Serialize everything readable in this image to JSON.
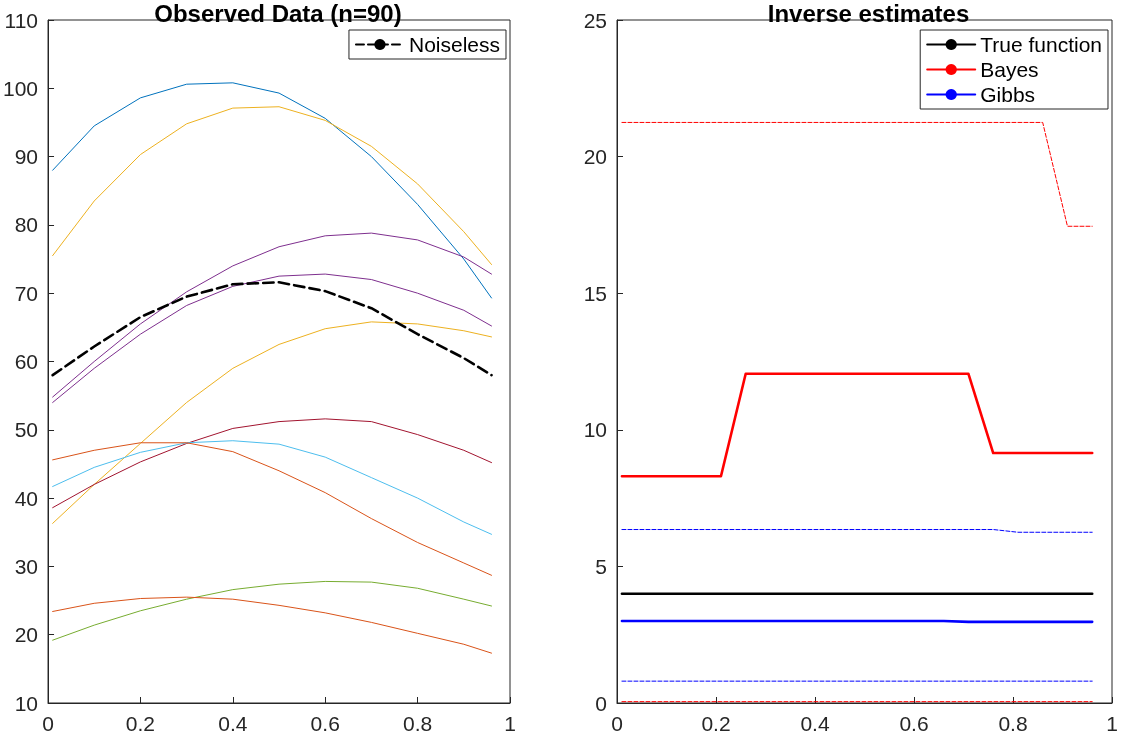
{
  "chart_data": [
    {
      "type": "line",
      "title": "Observed Data (n=90)",
      "x": [
        0.01,
        0.1,
        0.2,
        0.3,
        0.4,
        0.5,
        0.6,
        0.7,
        0.8,
        0.9,
        0.96
      ],
      "xlim": [
        0,
        1
      ],
      "xticks": [
        0,
        0.2,
        0.4,
        0.6,
        0.8,
        1
      ],
      "ylim": [
        10,
        110
      ],
      "yticks": [
        10,
        20,
        30,
        40,
        50,
        60,
        70,
        80,
        90,
        100,
        110
      ],
      "grid": false,
      "legend": "top right",
      "marker": "none",
      "series": [
        {
          "color": "#0072bd",
          "values": [
            88,
            94.5,
            98.6,
            100.6,
            100.8,
            99.3,
            95.6,
            90,
            83,
            75,
            69.3
          ]
        },
        {
          "color": "#edb120",
          "values": [
            75.5,
            83.5,
            90.3,
            94.8,
            97.1,
            97.3,
            95.3,
            91.5,
            86,
            79,
            74.2
          ]
        },
        {
          "color": "#7e2f8e",
          "values": [
            54.8,
            60,
            65.5,
            70.2,
            74,
            76.8,
            78.4,
            78.8,
            77.8,
            75.3,
            72.8
          ]
        },
        {
          "color": "#7e2f8e",
          "values": [
            54,
            59,
            64,
            68.2,
            71,
            72.5,
            72.8,
            72,
            70,
            67.5,
            65.2
          ]
        },
        {
          "name": "Noiseless",
          "color": "#000000",
          "line_style": "dashed",
          "values": [
            58,
            62.2,
            66.5,
            69.5,
            71.3,
            71.6,
            70.3,
            67.8,
            64,
            60.5,
            58
          ]
        },
        {
          "color": "#edb120",
          "values": [
            36.3,
            42,
            48,
            54,
            59,
            62.5,
            64.8,
            65.8,
            65.5,
            64.5,
            63.6
          ]
        },
        {
          "color": "#a2142f",
          "values": [
            38.6,
            42,
            45.3,
            48,
            50.2,
            51.2,
            51.6,
            51.2,
            49.3,
            47,
            45.2
          ]
        },
        {
          "color": "#4dbeee",
          "values": [
            41.7,
            44.5,
            46.7,
            48.1,
            48.4,
            47.9,
            46,
            43,
            40,
            36.5,
            34.7
          ]
        },
        {
          "color": "#d95319",
          "values": [
            45.6,
            47,
            48.1,
            48.1,
            46.8,
            44,
            40.8,
            37,
            33.5,
            30.5,
            28.7
          ]
        },
        {
          "color": "#77ac30",
          "values": [
            19.2,
            21.4,
            23.5,
            25.2,
            26.6,
            27.4,
            27.8,
            27.7,
            26.8,
            25.2,
            24.2
          ]
        },
        {
          "color": "#d95319",
          "values": [
            23.4,
            24.6,
            25.3,
            25.5,
            25.2,
            24.3,
            23.2,
            21.8,
            20.2,
            18.6,
            17.3
          ]
        }
      ]
    },
    {
      "type": "line",
      "title": "Inverse estimates",
      "xlim": [
        0,
        1
      ],
      "xticks": [
        0,
        0.2,
        0.4,
        0.6,
        0.8,
        1
      ],
      "ylim": [
        0,
        25
      ],
      "yticks": [
        0,
        5,
        10,
        15,
        20,
        25
      ],
      "grid": false,
      "legend": "top right",
      "marker": "none",
      "series": [
        {
          "name": "True function",
          "color": "#000000",
          "x": [
            0.01,
            0.96
          ],
          "values": [
            4,
            4
          ]
        },
        {
          "name": "Bayes",
          "color": "#ff0000",
          "x": [
            0.01,
            0.21,
            0.26,
            0.71,
            0.76,
            0.96
          ],
          "values": [
            8.3,
            8.3,
            12.05,
            12.05,
            9.15,
            9.15
          ]
        },
        {
          "name": "Gibbs",
          "color": "#0000ff",
          "x": [
            0.01,
            0.66,
            0.71,
            0.96
          ],
          "values": [
            3,
            3,
            2.97,
            2.97
          ]
        },
        {
          "color": "#ff0000",
          "line_style": "dashed",
          "x": [
            0.01,
            0.86,
            0.91,
            0.96
          ],
          "values": [
            21.25,
            21.25,
            17.45,
            17.45
          ]
        },
        {
          "color": "#ff0000",
          "line_style": "dashed",
          "x": [
            0.01,
            0.96
          ],
          "values": [
            0.05,
            0.05
          ]
        },
        {
          "color": "#0000ff",
          "line_style": "dashed",
          "x": [
            0.01,
            0.76,
            0.81,
            0.96
          ],
          "values": [
            6.35,
            6.35,
            6.25,
            6.25
          ]
        },
        {
          "color": "#0000ff",
          "line_style": "dashed",
          "x": [
            0.01,
            0.96
          ],
          "values": [
            0.8,
            0.8
          ]
        }
      ]
    }
  ]
}
